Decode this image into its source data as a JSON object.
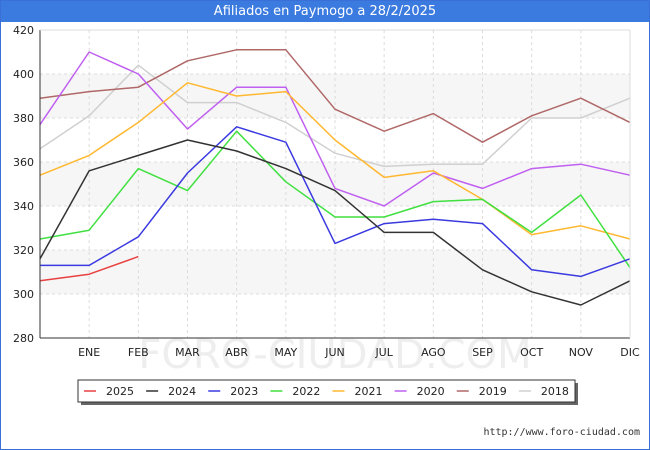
{
  "title": "Afiliados en Paymogo a 28/2/2025",
  "footer": "http://www.foro-ciudad.com",
  "watermark": "FORO-CIUDAD.COM",
  "chart_data": {
    "type": "line",
    "title": "Afiliados en Paymogo a 28/2/2025",
    "categories": [
      "",
      "ENE",
      "FEB",
      "MAR",
      "ABR",
      "MAY",
      "JUN",
      "JUL",
      "AGO",
      "SEP",
      "OCT",
      "NOV",
      "DIC"
    ],
    "yticks": [
      280,
      300,
      320,
      340,
      360,
      380,
      400,
      420
    ],
    "ylim": [
      280,
      420
    ],
    "grid": true,
    "legend_position": "bottom",
    "series": [
      {
        "name": "2025",
        "color": "#e84040",
        "values": [
          306,
          309,
          317,
          null,
          null,
          null,
          null,
          null,
          null,
          null,
          null,
          null,
          null
        ]
      },
      {
        "name": "2024",
        "color": "#333333",
        "values": [
          316,
          356,
          363,
          370,
          365,
          357,
          347,
          328,
          328,
          311,
          301,
          295,
          306
        ]
      },
      {
        "name": "2023",
        "color": "#3a3ae0",
        "values": [
          313,
          313,
          326,
          355,
          376,
          369,
          323,
          332,
          334,
          332,
          311,
          308,
          316
        ]
      },
      {
        "name": "2022",
        "color": "#40e040",
        "values": [
          325,
          329,
          357,
          347,
          374,
          351,
          335,
          335,
          342,
          343,
          328,
          345,
          312
        ]
      },
      {
        "name": "2021",
        "color": "#ffb830",
        "values": [
          354,
          363,
          378,
          396,
          390,
          392,
          370,
          353,
          356,
          343,
          327,
          331,
          325
        ]
      },
      {
        "name": "2020",
        "color": "#c060f0",
        "values": [
          377,
          410,
          400,
          375,
          394,
          394,
          348,
          340,
          355,
          348,
          357,
          359,
          354
        ]
      },
      {
        "name": "2019",
        "color": "#b06868",
        "values": [
          389,
          392,
          394,
          406,
          411,
          411,
          384,
          374,
          382,
          369,
          381,
          389,
          378
        ]
      },
      {
        "name": "2018",
        "color": "#d0d0d0",
        "values": [
          366,
          381,
          404,
          387,
          387,
          378,
          364,
          358,
          359,
          359,
          380,
          380,
          389
        ]
      }
    ]
  }
}
